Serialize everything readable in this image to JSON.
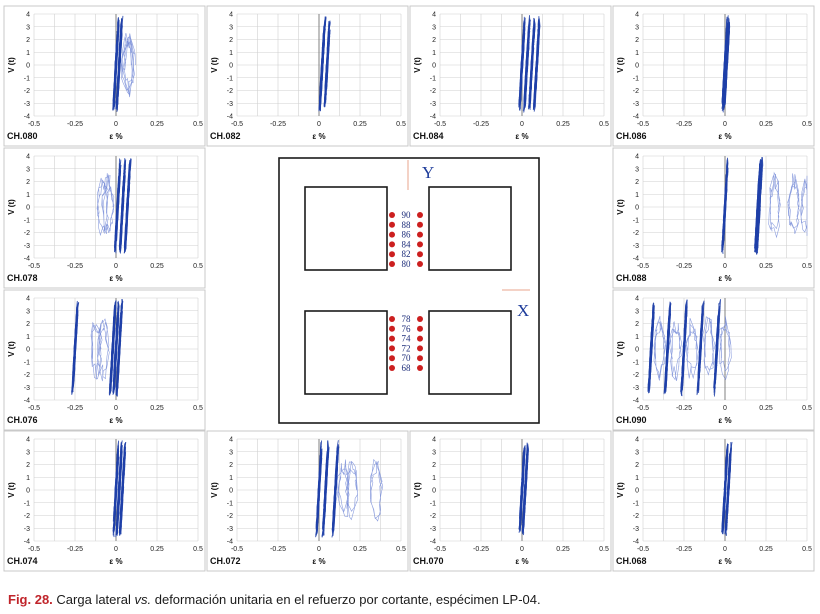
{
  "chart_data": {
    "type": "hysteresis-grid",
    "y_axis_label": "V (t)",
    "x_axis_label": "ε %",
    "y_ticks": [
      "4",
      "3",
      "2",
      "1",
      "0",
      "-1",
      "-2",
      "-3",
      "-4"
    ],
    "x_ticks": [
      "-0.5",
      "-0.25",
      "0",
      "0.25",
      "0.5"
    ],
    "ylim": [
      -4,
      4
    ],
    "xlim": [
      -0.5,
      0.5
    ],
    "panels": [
      {
        "channel": "CH.080",
        "x": [
          0.0,
          0.02
        ],
        "extra": [
          0.07,
          0.08
        ]
      },
      {
        "channel": "CH.082",
        "x": [
          0.02,
          0.05
        ],
        "extra": []
      },
      {
        "channel": "CH.084",
        "x": [
          0.0,
          0.03,
          0.06,
          0.09
        ],
        "extra": []
      },
      {
        "channel": "CH.086",
        "x": [
          0.0,
          0.01
        ],
        "extra": []
      },
      {
        "channel": "CH.078",
        "x": [
          0.01,
          0.04,
          0.07
        ],
        "extra": [
          -0.08,
          -0.05
        ]
      },
      {
        "channel": "CH.088",
        "x": [
          0.0,
          0.2,
          0.21
        ],
        "extra": [
          0.3,
          0.42,
          0.5
        ]
      },
      {
        "channel": "CH.076",
        "x": [
          -0.25,
          -0.02,
          0.0,
          0.02
        ],
        "extra": [
          -0.12,
          -0.08
        ]
      },
      {
        "channel": "CH.090",
        "x": [
          -0.45,
          -0.35,
          -0.25,
          -0.15,
          -0.05
        ],
        "extra": [
          -0.4,
          -0.3,
          -0.2,
          -0.1,
          0.0
        ]
      },
      {
        "channel": "CH.074",
        "x": [
          0.0,
          0.02,
          0.04
        ],
        "extra": []
      },
      {
        "channel": "CH.072",
        "x": [
          0.0,
          0.04,
          0.1
        ],
        "extra": [
          0.15,
          0.2,
          0.35
        ]
      },
      {
        "channel": "CH.070",
        "x": [
          0.0,
          0.02
        ],
        "extra": []
      },
      {
        "channel": "CH.068",
        "x": [
          0.0,
          0.02
        ],
        "extra": []
      }
    ],
    "plan": {
      "axis_y": "Y",
      "axis_x": "X",
      "gauges_top": [
        "90",
        "88",
        "86",
        "84",
        "82",
        "80"
      ],
      "gauges_bottom": [
        "78",
        "76",
        "74",
        "72",
        "70",
        "68"
      ]
    }
  },
  "caption": {
    "fig_num": "Fig. 28.",
    "text_before": "Carga lateral",
    "vs": "vs.",
    "text_after": "deformación unitaria en el refuerzo por cortante, espécimen LP-04."
  }
}
